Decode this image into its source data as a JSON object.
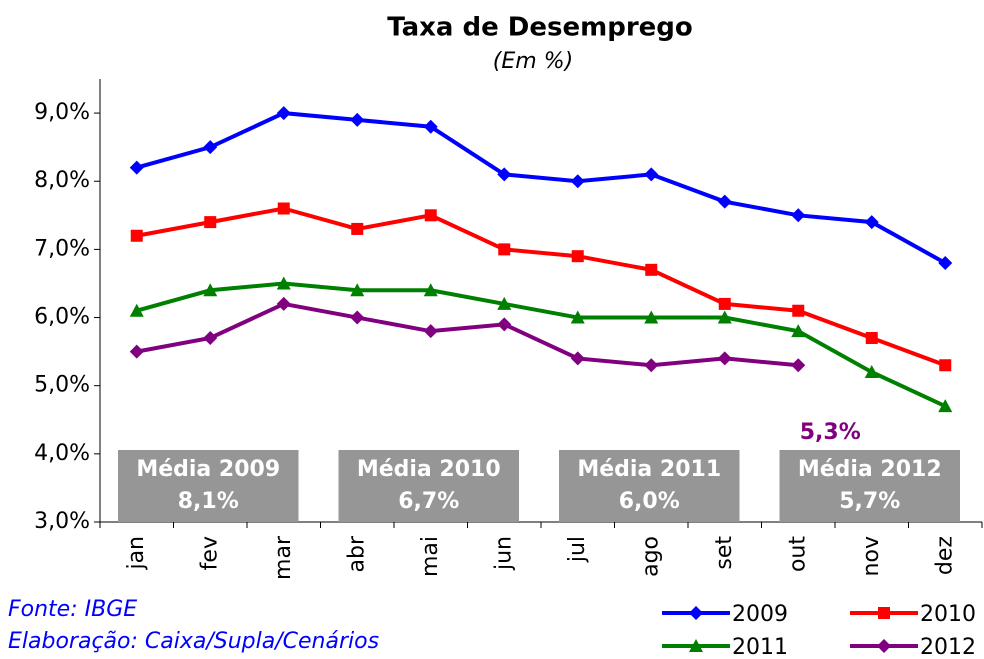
{
  "chart_data": {
    "type": "line",
    "title": "Taxa de Desemprego",
    "subtitle": "(Em %)",
    "categories": [
      "jan",
      "fev",
      "mar",
      "abr",
      "mai",
      "jun",
      "jul",
      "ago",
      "set",
      "out",
      "nov",
      "dez"
    ],
    "series": [
      {
        "name": "2009",
        "color": "#0000ff",
        "marker": "diamond",
        "values": [
          8.2,
          8.5,
          9.0,
          8.9,
          8.8,
          8.1,
          8.0,
          8.1,
          7.7,
          7.5,
          7.4,
          6.8
        ]
      },
      {
        "name": "2010",
        "color": "#ff0000",
        "marker": "square",
        "values": [
          7.2,
          7.4,
          7.6,
          7.3,
          7.5,
          7.0,
          6.9,
          6.7,
          6.2,
          6.1,
          5.7,
          5.3
        ]
      },
      {
        "name": "2011",
        "color": "#008000",
        "marker": "triangle",
        "values": [
          6.1,
          6.4,
          6.5,
          6.4,
          6.4,
          6.2,
          6.0,
          6.0,
          6.0,
          5.8,
          5.2,
          4.7
        ]
      },
      {
        "name": "2012",
        "color": "#800080",
        "marker": "diamond",
        "values": [
          5.5,
          5.7,
          6.2,
          6.0,
          5.8,
          5.9,
          5.4,
          5.3,
          5.4,
          5.3,
          null,
          null
        ]
      }
    ],
    "ylim": [
      3,
      9.5
    ],
    "yticks": [
      {
        "value": 3,
        "label": "3,0%"
      },
      {
        "value": 4,
        "label": "4,0%"
      },
      {
        "value": 5,
        "label": "5,0%"
      },
      {
        "value": 6,
        "label": "6,0%"
      },
      {
        "value": 7,
        "label": "7,0%"
      },
      {
        "value": 8,
        "label": "8,0%"
      },
      {
        "value": 9,
        "label": "9,0%"
      }
    ],
    "grid": false,
    "annotations": [
      {
        "text": "5,3%",
        "series": 3,
        "index": 9
      }
    ],
    "averages": [
      {
        "label": "Média 2009",
        "value_label": "8,1%"
      },
      {
        "label": "Média 2010",
        "value_label": "6,7%"
      },
      {
        "label": "Média 2011",
        "value_label": "6,0%"
      },
      {
        "label": "Média 2012",
        "value_label": "5,7%"
      }
    ],
    "source": "Fonte: IBGE",
    "credit": "Elaboração: Caixa/Supla/Cenários",
    "legend": "bottom-right"
  }
}
